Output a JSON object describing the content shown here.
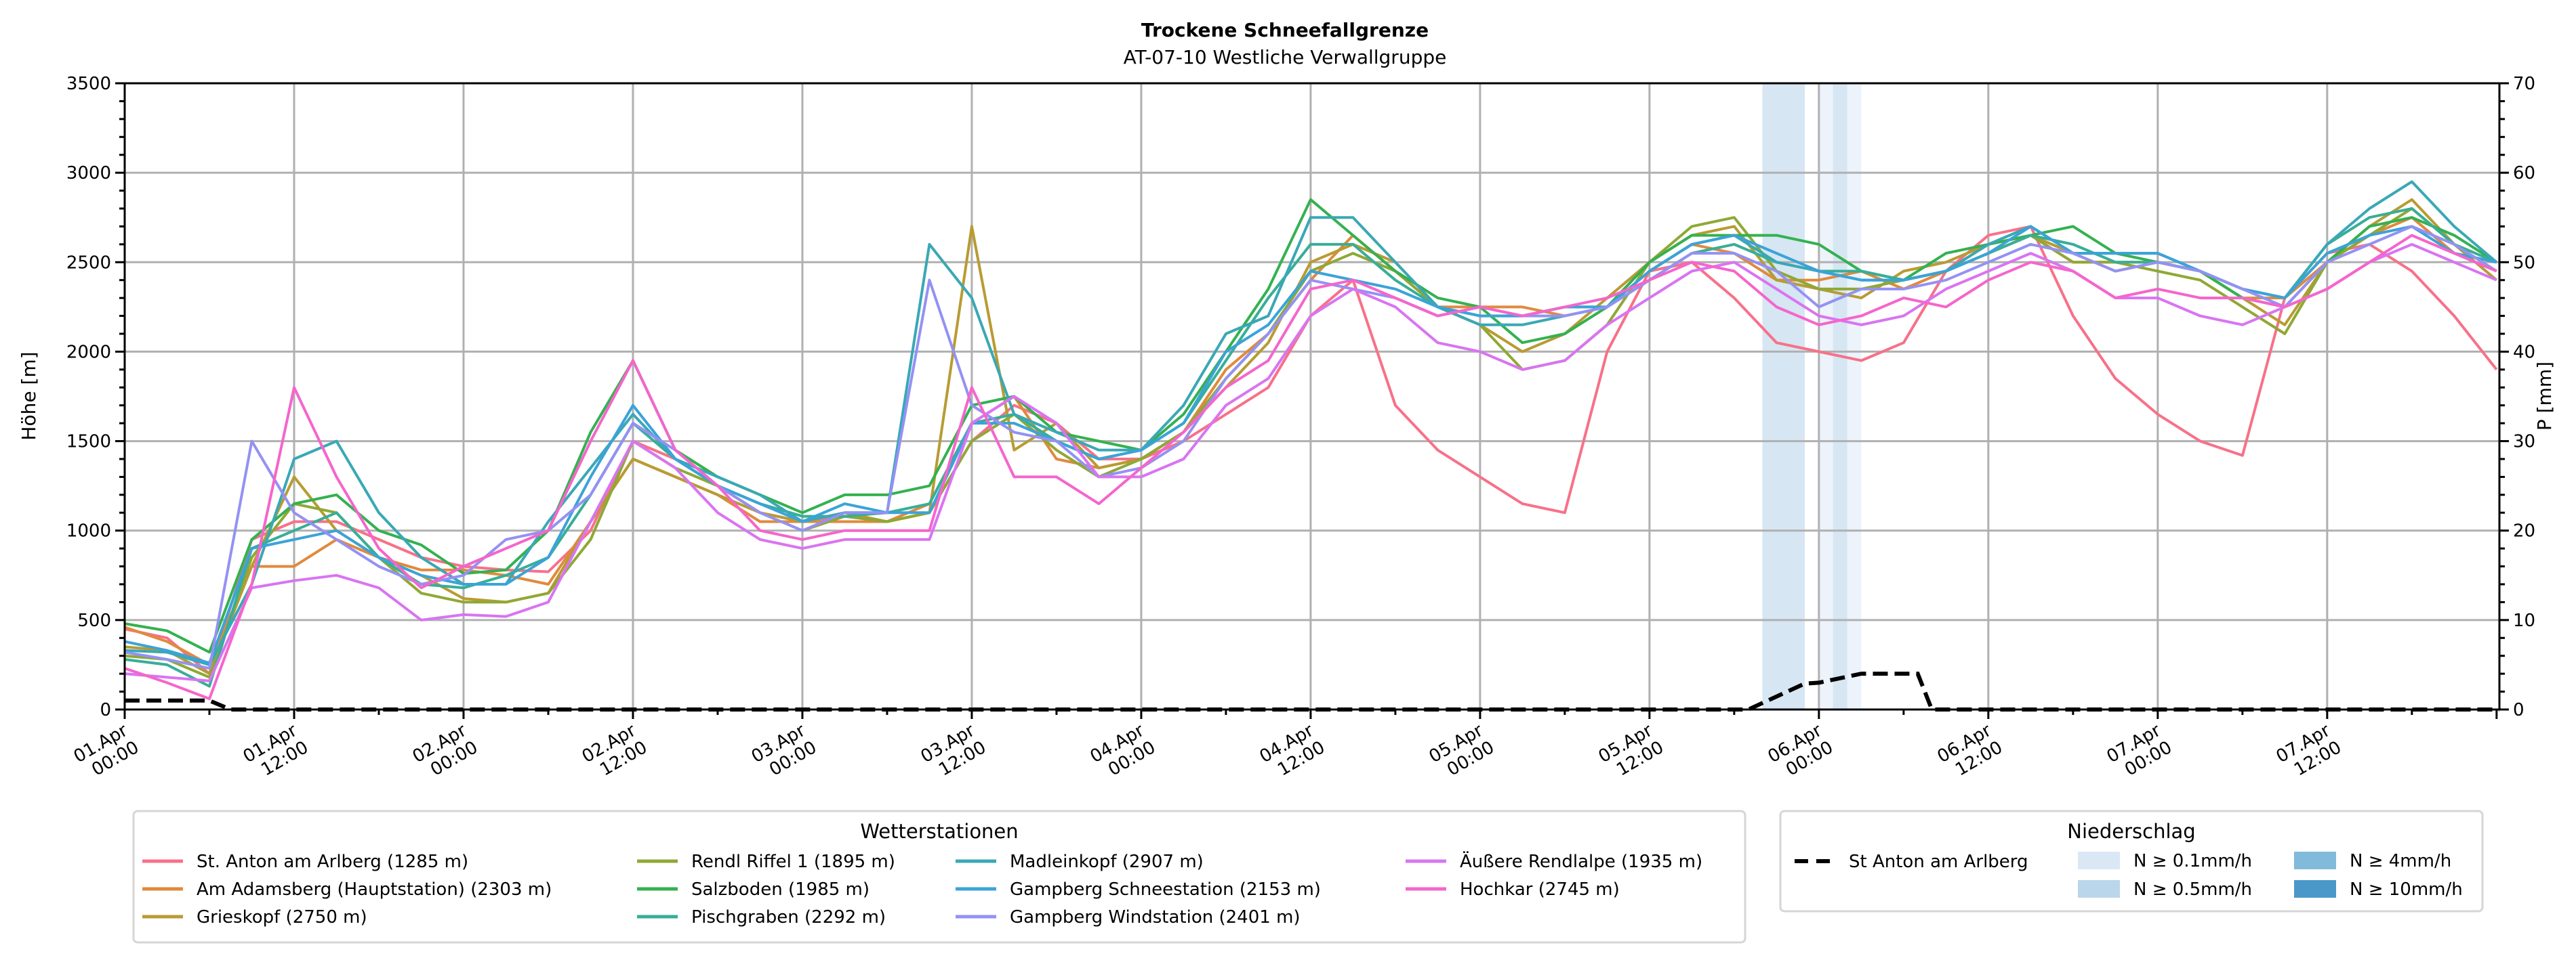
{
  "chart_data": {
    "type": "line",
    "title": "Trockene Schneefallgrenze",
    "subtitle": "AT-07-10 Westliche Verwallgruppe",
    "ylabel": "Höhe [m]",
    "y2label": "P [mm]",
    "ylim": [
      0,
      3500
    ],
    "y2lim": [
      0,
      70
    ],
    "xlim_hours": [
      0,
      168.2
    ],
    "yticks": [
      "0",
      "500",
      "1000",
      "1500",
      "2000",
      "2500",
      "3000",
      "3500"
    ],
    "y2ticks": [
      "0",
      "10",
      "20",
      "30",
      "40",
      "50",
      "60",
      "70"
    ],
    "xticks": [
      {
        "l1": "01.Apr",
        "l2": "00:00"
      },
      {
        "l1": "01.Apr",
        "l2": "12:00"
      },
      {
        "l1": "02.Apr",
        "l2": "00:00"
      },
      {
        "l1": "02.Apr",
        "l2": "12:00"
      },
      {
        "l1": "03.Apr",
        "l2": "00:00"
      },
      {
        "l1": "03.Apr",
        "l2": "12:00"
      },
      {
        "l1": "04.Apr",
        "l2": "00:00"
      },
      {
        "l1": "04.Apr",
        "l2": "12:00"
      },
      {
        "l1": "05.Apr",
        "l2": "00:00"
      },
      {
        "l1": "05.Apr",
        "l2": "12:00"
      },
      {
        "l1": "06.Apr",
        "l2": "00:00"
      },
      {
        "l1": "06.Apr",
        "l2": "12:00"
      },
      {
        "l1": "07.Apr",
        "l2": "00:00"
      },
      {
        "l1": "07.Apr",
        "l2": "12:00"
      }
    ],
    "grid": true,
    "x_step_hours": 3,
    "legend_title": "Wetterstationen",
    "legend_placement": "bottom",
    "series": [
      {
        "name": "St. Anton am Arlberg (1285 m)",
        "color": "#f77189",
        "values": [
          450,
          400,
          200,
          950,
          1050,
          1050,
          950,
          850,
          800,
          780,
          770,
          1000,
          1500,
          1400,
          1250,
          1100,
          1050,
          1080,
          1050,
          1100,
          1500,
          1700,
          1600,
          1400,
          1400,
          1500,
          1650,
          1800,
          2200,
          2400,
          1700,
          1450,
          1300,
          1150,
          1100,
          2000,
          2450,
          2500,
          2300,
          2050,
          2000,
          1950,
          2050,
          2450,
          2650,
          2700,
          2200,
          1850,
          1650,
          1500,
          1420,
          2300,
          2550,
          2600,
          2450,
          2200,
          1900
        ]
      },
      {
        "name": "Am Adamsberg (Hauptstation) (2303 m)",
        "color": "#e08a3c",
        "values": [
          460,
          380,
          250,
          800,
          800,
          950,
          850,
          780,
          780,
          750,
          700,
          1050,
          1400,
          1300,
          1200,
          1050,
          1050,
          1050,
          1050,
          1150,
          1600,
          1750,
          1400,
          1350,
          1400,
          1550,
          1900,
          2100,
          2400,
          2650,
          2450,
          2250,
          2250,
          2250,
          2200,
          2250,
          2450,
          2600,
          2550,
          2400,
          2400,
          2450,
          2350,
          2450,
          2600,
          2650,
          2500,
          2500,
          2500,
          2450,
          2300,
          2300,
          2500,
          2650,
          2750,
          2550,
          2500
        ]
      },
      {
        "name": "Grieskopf (2750 m)",
        "color": "#b89b33",
        "values": [
          350,
          330,
          200,
          800,
          1300,
          1000,
          850,
          750,
          620,
          600,
          650,
          1050,
          1400,
          1300,
          1200,
          1100,
          1050,
          1100,
          1050,
          1100,
          2700,
          1450,
          1600,
          1350,
          1400,
          1550,
          1800,
          2050,
          2500,
          2600,
          2500,
          2250,
          2150,
          2000,
          2100,
          2300,
          2500,
          2650,
          2700,
          2400,
          2350,
          2300,
          2450,
          2500,
          2600,
          2650,
          2550,
          2450,
          2500,
          2450,
          2300,
          2150,
          2500,
          2700,
          2850,
          2600,
          2400
        ]
      },
      {
        "name": "Rendl Riffel 1 (1895 m)",
        "color": "#8fa835",
        "values": [
          300,
          280,
          180,
          850,
          1150,
          1100,
          850,
          650,
          600,
          600,
          650,
          950,
          1500,
          1350,
          1250,
          1100,
          1000,
          1080,
          1050,
          1100,
          1500,
          1650,
          1450,
          1300,
          1400,
          1550,
          1850,
          2100,
          2450,
          2550,
          2450,
          2250,
          2150,
          1900,
          1950,
          2150,
          2500,
          2700,
          2750,
          2450,
          2350,
          2350,
          2400,
          2450,
          2550,
          2650,
          2500,
          2500,
          2450,
          2400,
          2250,
          2100,
          2500,
          2650,
          2800,
          2600,
          2450
        ]
      },
      {
        "name": "Salzboden (1985 m)",
        "color": "#34b150",
        "values": [
          480,
          440,
          320,
          950,
          1150,
          1200,
          1000,
          920,
          760,
          780,
          1000,
          1550,
          1950,
          1450,
          1300,
          1200,
          1100,
          1200,
          1200,
          1250,
          1700,
          1750,
          1550,
          1500,
          1450,
          1650,
          2000,
          2350,
          2850,
          2650,
          2450,
          2300,
          2250,
          2050,
          2100,
          2250,
          2500,
          2650,
          2650,
          2650,
          2600,
          2450,
          2400,
          2550,
          2600,
          2650,
          2700,
          2550,
          2500,
          2450,
          2300,
          2250,
          2500,
          2700,
          2750,
          2650,
          2500
        ]
      },
      {
        "name": "Pischgraben (2292 m)",
        "color": "#38ae97",
        "values": [
          280,
          250,
          130,
          900,
          1000,
          1100,
          850,
          700,
          680,
          750,
          850,
          1200,
          1600,
          1400,
          1250,
          1150,
          1080,
          1080,
          1100,
          1150,
          1600,
          1650,
          1500,
          1400,
          1450,
          1600,
          1950,
          2300,
          2600,
          2600,
          2400,
          2250,
          2200,
          2200,
          2250,
          2250,
          2400,
          2550,
          2600,
          2500,
          2450,
          2450,
          2400,
          2450,
          2550,
          2650,
          2600,
          2500,
          2500,
          2450,
          2350,
          2300,
          2600,
          2750,
          2800,
          2600,
          2500
        ]
      },
      {
        "name": "Madleinkopf (2907 m)",
        "color": "#3aa8b5",
        "values": [
          330,
          320,
          250,
          700,
          1400,
          1500,
          1100,
          850,
          700,
          700,
          1050,
          1350,
          1650,
          1400,
          1300,
          1200,
          1050,
          1100,
          1100,
          2600,
          2300,
          1650,
          1550,
          1450,
          1450,
          1700,
          2100,
          2200,
          2750,
          2750,
          2500,
          2250,
          2150,
          2150,
          2200,
          2250,
          2450,
          2600,
          2650,
          2500,
          2450,
          2400,
          2400,
          2450,
          2600,
          2700,
          2550,
          2550,
          2550,
          2450,
          2350,
          2300,
          2600,
          2800,
          2950,
          2700,
          2500
        ]
      },
      {
        "name": "Gampberg Schneestation (2153 m)",
        "color": "#3ba3d8",
        "values": [
          380,
          330,
          260,
          900,
          950,
          1000,
          850,
          750,
          700,
          700,
          850,
          1300,
          1700,
          1400,
          1250,
          1150,
          1050,
          1150,
          1100,
          1100,
          1600,
          1600,
          1500,
          1400,
          1450,
          1600,
          2000,
          2150,
          2450,
          2400,
          2350,
          2250,
          2200,
          2200,
          2250,
          2250,
          2450,
          2600,
          2650,
          2550,
          2450,
          2400,
          2400,
          2450,
          2550,
          2700,
          2550,
          2550,
          2550,
          2450,
          2350,
          2300,
          2550,
          2650,
          2700,
          2550,
          2500
        ]
      },
      {
        "name": "Gampberg Windstation (2401 m)",
        "color": "#9491f4",
        "values": [
          320,
          280,
          230,
          1500,
          1100,
          950,
          800,
          700,
          750,
          950,
          1000,
          1200,
          1600,
          1450,
          1250,
          1100,
          1000,
          1100,
          1100,
          2400,
          1700,
          1550,
          1500,
          1300,
          1350,
          1500,
          1850,
          2100,
          2400,
          2350,
          2300,
          2200,
          2250,
          2200,
          2200,
          2250,
          2400,
          2550,
          2550,
          2450,
          2250,
          2350,
          2350,
          2400,
          2500,
          2600,
          2550,
          2450,
          2500,
          2450,
          2350,
          2250,
          2500,
          2600,
          2700,
          2600,
          2450
        ]
      },
      {
        "name": "Äußere Rendlalpe (1935 m)",
        "color": "#d974f2",
        "values": [
          200,
          180,
          160,
          680,
          720,
          750,
          680,
          500,
          530,
          520,
          600,
          1050,
          1500,
          1350,
          1100,
          950,
          900,
          950,
          950,
          950,
          1600,
          1750,
          1600,
          1300,
          1300,
          1400,
          1700,
          1850,
          2200,
          2350,
          2250,
          2050,
          2000,
          1900,
          1950,
          2150,
          2300,
          2450,
          2500,
          2350,
          2200,
          2150,
          2200,
          2350,
          2450,
          2550,
          2450,
          2300,
          2300,
          2200,
          2150,
          2250,
          2350,
          2500,
          2600,
          2500,
          2400
        ]
      },
      {
        "name": "Hochkar (2745 m)",
        "color": "#f565cc",
        "values": [
          230,
          150,
          60,
          700,
          1800,
          1300,
          900,
          680,
          800,
          900,
          1000,
          1500,
          1950,
          1450,
          1250,
          1000,
          950,
          1000,
          1000,
          1000,
          1800,
          1300,
          1300,
          1150,
          1350,
          1550,
          1800,
          1950,
          2350,
          2400,
          2300,
          2200,
          2250,
          2200,
          2250,
          2300,
          2400,
          2500,
          2450,
          2250,
          2150,
          2200,
          2300,
          2250,
          2400,
          2500,
          2450,
          2300,
          2350,
          2300,
          2300,
          2250,
          2350,
          2500,
          2650,
          2550,
          2450
        ]
      }
    ],
    "precipitation": {
      "legend_title": "Niederschlag",
      "line_name": "St Anton am Arlberg",
      "line_color": "#000000",
      "hours": [
        0,
        6,
        7.5,
        115,
        119,
        120,
        123,
        127,
        128,
        168.2
      ],
      "values_mm": [
        1.0,
        1.0,
        0,
        0,
        2.9,
        3.0,
        4.0,
        4.0,
        0,
        0
      ],
      "classes": [
        {
          "label": "N ≥ 0.1mm/h",
          "color": "#dae8f5"
        },
        {
          "label": "N ≥ 0.5mm/h",
          "color": "#bad6eb"
        },
        {
          "label": "N ≥ 4mm/h",
          "color": "#82badb"
        },
        {
          "label": "N ≥ 10mm/h",
          "color": "#4a98c9"
        }
      ],
      "bands": [
        {
          "start_hour": 116,
          "end_hour": 119,
          "class": 1
        },
        {
          "start_hour": 120,
          "end_hour": 121,
          "class": 0
        },
        {
          "start_hour": 121,
          "end_hour": 122,
          "class": 1
        },
        {
          "start_hour": 122,
          "end_hour": 123,
          "class": 0
        }
      ]
    }
  }
}
